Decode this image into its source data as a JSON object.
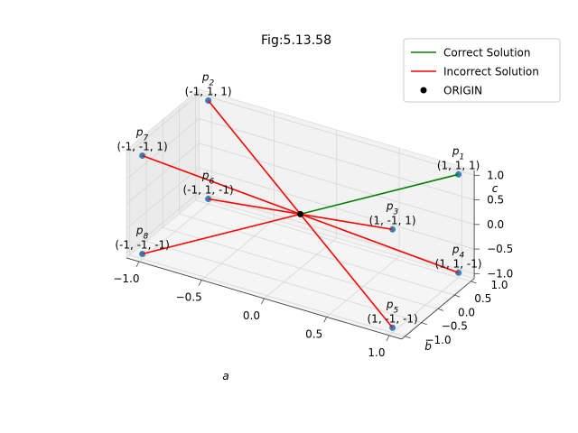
{
  "chart_data": {
    "type": "scatter3d",
    "title": "Fig:5.13.58",
    "xlabel": "a",
    "ylabel": "b",
    "zlabel": "c",
    "xlim": [
      -1,
      1
    ],
    "ylim": [
      -1,
      1
    ],
    "zlim": [
      -1,
      1
    ],
    "xticks": [
      "−1.0",
      "−0.5",
      "0.0",
      "0.5",
      "1.0"
    ],
    "yticks": [
      "−1.0",
      "−0.5",
      "0.0",
      "0.5",
      "1.0"
    ],
    "zticks": [
      "−1.0",
      "−0.5",
      "0.0",
      "0.5",
      "1.0"
    ],
    "grid": true,
    "legend_position": "top-right",
    "points": [
      {
        "name": "p",
        "sub": "1",
        "coords": "(1, 1, 1)",
        "x": 1,
        "y": 1,
        "z": 1
      },
      {
        "name": "p",
        "sub": "2",
        "coords": "(-1, 1, 1)",
        "x": -1,
        "y": 1,
        "z": 1
      },
      {
        "name": "p",
        "sub": "3",
        "coords": "(1, -1, 1)",
        "x": 1,
        "y": -1,
        "z": 1
      },
      {
        "name": "p",
        "sub": "4",
        "coords": "(1, 1, -1)",
        "x": 1,
        "y": 1,
        "z": -1
      },
      {
        "name": "p",
        "sub": "5",
        "coords": "(1, -1, -1)",
        "x": 1,
        "y": -1,
        "z": -1
      },
      {
        "name": "p",
        "sub": "6",
        "coords": "(-1, 1, -1)",
        "x": -1,
        "y": 1,
        "z": -1
      },
      {
        "name": "p",
        "sub": "7",
        "coords": "(-1, -1, 1)",
        "x": -1,
        "y": -1,
        "z": 1
      },
      {
        "name": "p",
        "sub": "8",
        "coords": "(-1, -1, -1)",
        "x": -1,
        "y": -1,
        "z": -1
      }
    ],
    "origin": {
      "x": 0,
      "y": 0,
      "z": 0
    },
    "series": [
      {
        "name": "Correct Solution",
        "color": "#008000",
        "segments": [
          [
            0,
            0,
            0,
            1,
            1,
            1
          ]
        ]
      },
      {
        "name": "Incorrect Solution",
        "color": "#ff0000",
        "segments": [
          [
            -1,
            1,
            1,
            1,
            -1,
            -1
          ],
          [
            -1,
            -1,
            1,
            1,
            1,
            -1
          ],
          [
            -1,
            -1,
            -1,
            0,
            0,
            0
          ],
          [
            -1,
            1,
            -1,
            1,
            -1,
            1
          ]
        ]
      },
      {
        "name": "ORIGIN",
        "color": "#000000",
        "marker": "dot"
      }
    ],
    "point_color": "#1f77b4"
  }
}
